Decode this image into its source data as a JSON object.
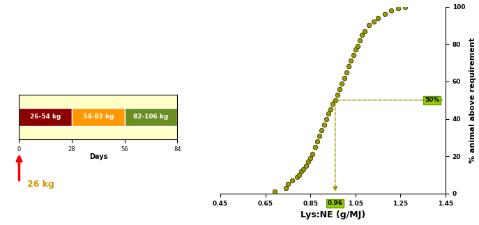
{
  "chart_data": [
    {
      "type": "bar",
      "orientation": "horizontal",
      "stacked": true,
      "categories": [
        null
      ],
      "series": [
        {
          "name": "26-54 kg",
          "color": "#8b0000",
          "values": [
            28
          ]
        },
        {
          "name": "54-82 kg",
          "color": "#ff9900",
          "values": [
            28
          ]
        },
        {
          "name": "82-106 kg",
          "color": "#6b8e23",
          "values": [
            28
          ]
        }
      ],
      "x_label": "Days",
      "xlim": [
        0,
        84
      ],
      "xticks": [
        0,
        28,
        56,
        84
      ],
      "tick_labels": "x",
      "annotations": [
        {
          "text": "26 kg",
          "x": 0
        }
      ]
    },
    {
      "type": "scatter",
      "color": "#999900",
      "marker": "circle",
      "x_label": "Lys:NE (g/MJ)",
      "y_label": "% animal above requirement",
      "x": [
        0.69,
        0.74,
        0.75,
        0.77,
        0.79,
        0.8,
        0.81,
        0.82,
        0.83,
        0.84,
        0.85,
        0.86,
        0.87,
        0.88,
        0.89,
        0.9,
        0.91,
        0.92,
        0.93,
        0.94,
        0.95,
        0.96,
        0.97,
        0.98,
        0.99,
        1.0,
        1.01,
        1.02,
        1.03,
        1.04,
        1.05,
        1.06,
        1.07,
        1.08,
        1.09,
        1.11,
        1.13,
        1.15,
        1.18,
        1.21,
        1.24,
        1.27
      ],
      "values": [
        1,
        3,
        5,
        7,
        9,
        10,
        12,
        13,
        15,
        17,
        19,
        21,
        25,
        28,
        31,
        34,
        37,
        40,
        43,
        45,
        48,
        50,
        53,
        56,
        59,
        62,
        65,
        68,
        71,
        74,
        77,
        79,
        82,
        85,
        87,
        90,
        92,
        94,
        96,
        98,
        99,
        100
      ],
      "xlim": [
        0.45,
        1.45
      ],
      "xticks": [
        0.45,
        0.65,
        0.85,
        1.05,
        1.25,
        1.45
      ],
      "ylim": [
        0,
        100
      ],
      "yticks": [
        0,
        20,
        40,
        60,
        80,
        100
      ],
      "annotations": [
        {
          "text": "50%",
          "x": 1.45,
          "y": 50
        },
        {
          "text": "0.96",
          "x": 0.96,
          "y": 0
        }
      ]
    }
  ]
}
